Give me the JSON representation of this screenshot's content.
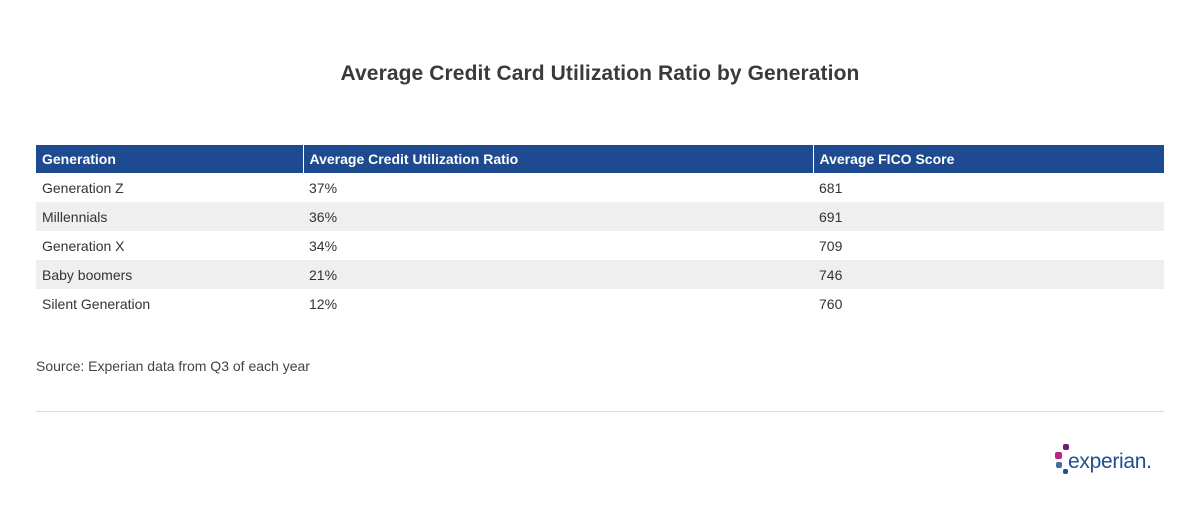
{
  "chart_data": {
    "type": "table",
    "title": "Average Credit Card Utilization Ratio by Generation",
    "columns": [
      "Generation",
      "Average Credit Utilization Ratio",
      "Average FICO Score"
    ],
    "rows": [
      [
        "Generation Z",
        "37%",
        "681"
      ],
      [
        "Millennials",
        "36%",
        "691"
      ],
      [
        "Generation X",
        "34%",
        "709"
      ],
      [
        "Baby boomers",
        "21%",
        "746"
      ],
      [
        "Silent Generation",
        "12%",
        "760"
      ]
    ]
  },
  "source": "Source: Experian data from Q3 of each year",
  "logo": {
    "text": "experian.",
    "colors": [
      "#6d2077",
      "#b42982",
      "#426da9",
      "#1d4f91"
    ]
  }
}
